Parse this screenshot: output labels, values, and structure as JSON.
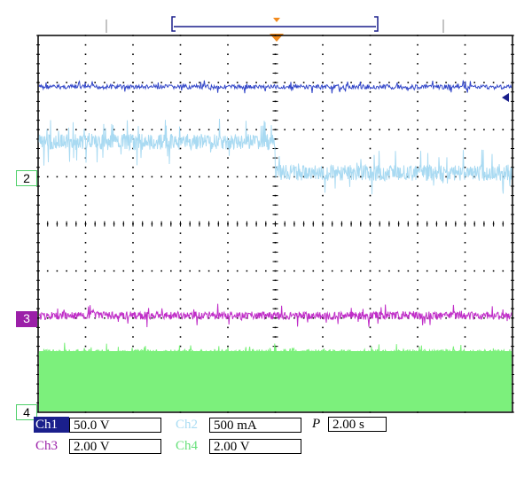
{
  "channels": [
    {
      "label": "Ch1",
      "scale": "50.0 V",
      "color": "#2b3fd0"
    },
    {
      "label": "Ch2",
      "scale": "500 mA",
      "color": "#a9dcf3"
    },
    {
      "label": "Ch3",
      "scale": "2.00 V",
      "color": "#c040c0"
    },
    {
      "label": "Ch4",
      "scale": "2.00 V",
      "color": "#66e07a"
    }
  ],
  "timebase": {
    "label": "P",
    "value": "2.00 s"
  },
  "markers": {
    "ch2": "2",
    "ch3": "3",
    "ch4": "4"
  },
  "colors": {
    "ch1_trace": "#3347c8",
    "ch2_trace": "#a9daf2",
    "ch3_trace": "#c02ec8",
    "ch4_trace": "#7cf07c",
    "ch3_marker_bg": "#9b1fa8",
    "ch1_label_bg": "#1a1f8c",
    "grid": "#000000"
  },
  "trigger_icon": "orange-down-triangle"
}
